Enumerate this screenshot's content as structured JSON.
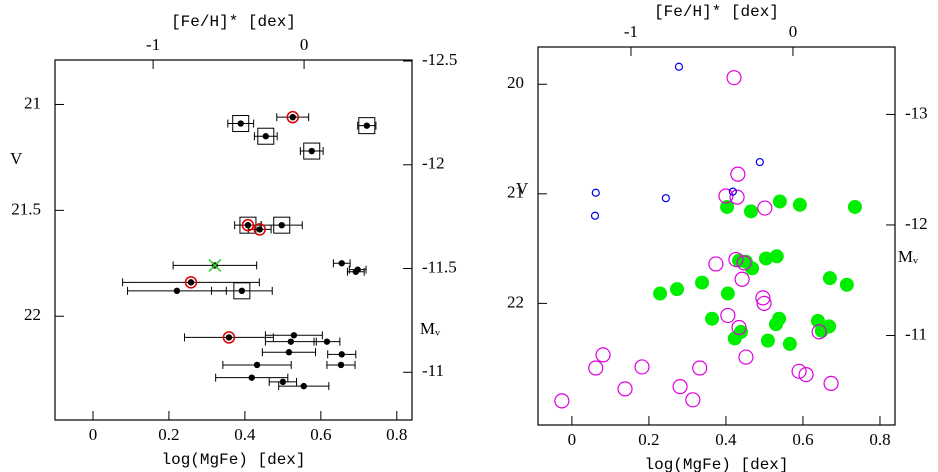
{
  "chart_data": [
    {
      "type": "scatter",
      "xlabel": "log(MgFe) [dex]",
      "x2label": "[Fe/H]* [dex]",
      "ylabel": "V",
      "y2label": "Mᵥ",
      "xlim": [
        -0.1,
        0.84
      ],
      "xticks": [
        0,
        0.2,
        0.4,
        0.6,
        0.8
      ],
      "x2lim": [
        -1.65,
        0.715
      ],
      "x2ticks": [
        -1,
        0
      ],
      "ylim": [
        22.49,
        20.79
      ],
      "yticks": [
        21,
        21.5,
        22
      ],
      "y2lim": [
        -10.77,
        -12.505
      ],
      "y2ticks": [
        -12.5,
        -12,
        -11.5,
        -11
      ],
      "series": [
        {
          "marker": "dot",
          "color": "#000000",
          "x": [
            0.389,
            0.455,
            0.576,
            0.721,
            0.526,
            0.408,
            0.439,
            0.497,
            0.321,
            0.655,
            0.697,
            0.692,
            0.258,
            0.221,
            0.392,
            0.358,
            0.529,
            0.521,
            0.616,
            0.516,
            0.655,
            0.653,
            0.432,
            0.418,
            0.5,
            0.555
          ],
          "y": [
            21.09,
            21.15,
            21.22,
            21.1,
            21.06,
            21.57,
            21.59,
            21.57,
            21.76,
            21.75,
            21.78,
            21.79,
            21.84,
            21.88,
            21.88,
            22.1,
            22.09,
            22.12,
            22.12,
            22.17,
            22.18,
            22.23,
            22.23,
            22.29,
            22.31,
            22.33
          ],
          "xerr": [
            0.034,
            0.03,
            0.03,
            0.024,
            0.042,
            0.035,
            0.03,
            0.054,
            0.11,
            0.022,
            0.022,
            0.022,
            0.18,
            0.13,
            0.08,
            0.117,
            0.075,
            0.067,
            0.034,
            0.07,
            0.037,
            0.037,
            0.09,
            0.095,
            0.036,
            0.066
          ]
        },
        {
          "marker": "square",
          "color": "#000000",
          "x": [
            0.389,
            0.455,
            0.576,
            0.721,
            0.408,
            0.497,
            0.392
          ],
          "y": [
            21.09,
            21.15,
            21.22,
            21.1,
            21.57,
            21.57,
            21.88
          ]
        },
        {
          "marker": "circle",
          "color": "#e00000",
          "x": [
            0.526,
            0.408,
            0.439,
            0.258,
            0.358
          ],
          "y": [
            21.06,
            21.57,
            21.59,
            21.84,
            22.1
          ]
        },
        {
          "marker": "x",
          "color": "#33cc33",
          "x": [
            0.321
          ],
          "y": [
            21.76
          ]
        }
      ]
    },
    {
      "type": "scatter",
      "xlabel": "log(MgFe) [dex]",
      "x2label": "[Fe/H]* [dex]",
      "ylabel": "V",
      "y2label": "Mᵥ",
      "xlim": [
        -0.088,
        0.839
      ],
      "xticks": [
        0,
        0.2,
        0.4,
        0.6,
        0.8
      ],
      "x2lim": [
        -1.574,
        0.63
      ],
      "x2ticks": [
        -1,
        0
      ],
      "ylim": [
        23.11,
        19.66
      ],
      "yticks": [
        20,
        21,
        22
      ],
      "y2lim": [
        -10.19,
        -13.61
      ],
      "y2ticks": [
        -13,
        -12,
        -11
      ],
      "series": [
        {
          "marker": "filled",
          "color": "#00ee00",
          "x": [
            0.229,
            0.273,
            0.338,
            0.405,
            0.468,
            0.532,
            0.54,
            0.592,
            0.403,
            0.465,
            0.735,
            0.434,
            0.452,
            0.504,
            0.67,
            0.714,
            0.364,
            0.439,
            0.423,
            0.538,
            0.53,
            0.509,
            0.566,
            0.639,
            0.668,
            0.649
          ],
          "y": [
            21.91,
            21.87,
            21.81,
            21.91,
            21.68,
            21.57,
            21.07,
            21.1,
            21.12,
            21.16,
            21.12,
            21.61,
            21.62,
            21.59,
            21.77,
            21.83,
            22.14,
            22.26,
            22.32,
            22.14,
            22.19,
            22.34,
            22.37,
            22.16,
            22.21,
            22.25
          ]
        },
        {
          "marker": "open",
          "color": "#dd00dd",
          "x": [
            0.421,
            0.431,
            0.4,
            0.429,
            0.501,
            0.442,
            0.426,
            0.447,
            0.374,
            0.496,
            0.499,
            0.405,
            0.434,
            0.642,
            0.452,
            0.332,
            0.59,
            0.608,
            0.673,
            0.182,
            0.081,
            0.062,
            0.138,
            0.281,
            0.314,
            -0.026
          ],
          "y": [
            19.94,
            20.82,
            21.02,
            21.03,
            21.13,
            21.78,
            21.6,
            21.63,
            21.64,
            21.95,
            22.0,
            22.11,
            22.22,
            22.26,
            22.49,
            22.59,
            22.62,
            22.65,
            22.73,
            22.58,
            22.47,
            22.59,
            22.78,
            22.76,
            22.88,
            22.89
          ]
        },
        {
          "marker": "small",
          "color": "#0000ee",
          "x": [
            0.278,
            0.488,
            0.418,
            0.062,
            0.244,
            0.06
          ],
          "y": [
            19.84,
            20.71,
            20.98,
            20.99,
            21.04,
            21.2
          ]
        }
      ]
    }
  ]
}
